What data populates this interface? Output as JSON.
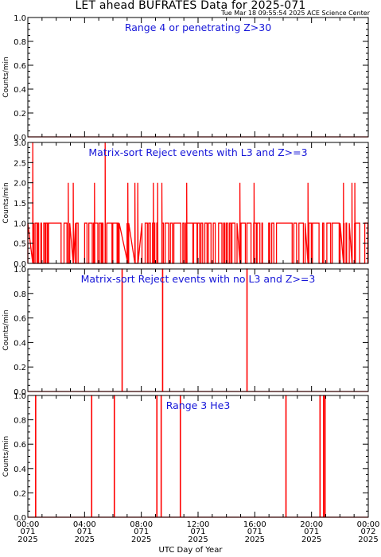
{
  "header": {
    "title": "LET ahead BUFRATES Data for 2025-071",
    "timestamp": "Tue Mar 18 09:55:54 2025 ACE Science Center"
  },
  "x_axis": {
    "label": "UTC Day of Year",
    "ticks": [
      {
        "hour": 0,
        "time": "00:00",
        "doy": "071",
        "year": "2025"
      },
      {
        "hour": 4,
        "time": "04:00",
        "doy": "071",
        "year": "2025"
      },
      {
        "hour": 8,
        "time": "08:00",
        "doy": "071",
        "year": "2025"
      },
      {
        "hour": 12,
        "time": "12:00",
        "doy": "071",
        "year": "2025"
      },
      {
        "hour": 16,
        "time": "16:00",
        "doy": "071",
        "year": "2025"
      },
      {
        "hour": 20,
        "time": "20:00",
        "doy": "071",
        "year": "2025"
      },
      {
        "hour": 24,
        "time": "00:00",
        "doy": "072",
        "year": "2025"
      }
    ],
    "range_hours": [
      0,
      24
    ]
  },
  "colors": {
    "data": "#ff0000",
    "title": "#1515d8",
    "axis": "#000000"
  },
  "chart_data": [
    {
      "type": "line",
      "title": "Range 4 or  penetrating Z>30",
      "ylabel": "Counts/min",
      "ylim": [
        0,
        1
      ],
      "yticks": [
        "0.0",
        "0.2",
        "0.4",
        "0.6",
        "0.8",
        "1.0"
      ],
      "ytick_values": [
        0,
        0.2,
        0.4,
        0.6,
        0.8,
        1.0
      ],
      "baseline": 0,
      "events": []
    },
    {
      "type": "line",
      "title": "Matrix-sort Reject events with L3 and Z>=3",
      "ylabel": "Counts/min",
      "ylim": [
        0,
        3
      ],
      "yticks": [
        "0.0",
        "0.5",
        "1.0",
        "1.5",
        "2.0",
        "2.5",
        "3.0"
      ],
      "ytick_values": [
        0,
        0.5,
        1.0,
        1.5,
        2.0,
        2.5,
        3.0
      ],
      "baseline": 0,
      "dense_base_level": 1,
      "events": [
        {
          "h": 0.35,
          "v": 3
        },
        {
          "h": 5.45,
          "v": 3
        },
        {
          "h": 2.85,
          "v": 2
        },
        {
          "h": 3.2,
          "v": 2
        },
        {
          "h": 4.7,
          "v": 2
        },
        {
          "h": 7.05,
          "v": 2
        },
        {
          "h": 7.55,
          "v": 2
        },
        {
          "h": 7.75,
          "v": 2
        },
        {
          "h": 8.85,
          "v": 2
        },
        {
          "h": 9.15,
          "v": 2
        },
        {
          "h": 9.45,
          "v": 2
        },
        {
          "h": 11.2,
          "v": 2
        },
        {
          "h": 14.95,
          "v": 2
        },
        {
          "h": 15.95,
          "v": 2
        },
        {
          "h": 19.75,
          "v": 2
        },
        {
          "h": 22.25,
          "v": 2
        },
        {
          "h": 22.85,
          "v": 2
        },
        {
          "h": 23.05,
          "v": 2
        }
      ]
    },
    {
      "type": "line",
      "title": "Matrix-sort Reject events with no L3 and Z>=3",
      "ylabel": "Counts/min",
      "ylim": [
        0,
        1
      ],
      "yticks": [
        "0.0",
        "0.2",
        "0.4",
        "0.6",
        "0.8",
        "1.0"
      ],
      "ytick_values": [
        0,
        0.2,
        0.4,
        0.6,
        0.8,
        1.0
      ],
      "baseline": 0,
      "events": [
        {
          "h": 6.65,
          "v": 1
        },
        {
          "h": 9.5,
          "v": 1
        },
        {
          "h": 15.45,
          "v": 1
        }
      ]
    },
    {
      "type": "line",
      "title": "Range 3 He3",
      "ylabel": "Counts/min",
      "ylim": [
        0,
        1
      ],
      "yticks": [
        "0.0",
        "0.2",
        "0.4",
        "0.6",
        "0.8",
        "1.0"
      ],
      "ytick_values": [
        0,
        0.2,
        0.4,
        0.6,
        0.8,
        1.0
      ],
      "baseline": 0,
      "events": [
        {
          "h": 0.55,
          "v": 1
        },
        {
          "h": 4.5,
          "v": 1
        },
        {
          "h": 6.1,
          "v": 1
        },
        {
          "h": 9.1,
          "v": 1
        },
        {
          "h": 9.4,
          "v": 1
        },
        {
          "h": 10.75,
          "v": 1
        },
        {
          "h": 18.2,
          "v": 1
        },
        {
          "h": 20.6,
          "v": 1
        },
        {
          "h": 20.85,
          "v": 1
        },
        {
          "h": 20.95,
          "v": 1
        }
      ]
    }
  ]
}
